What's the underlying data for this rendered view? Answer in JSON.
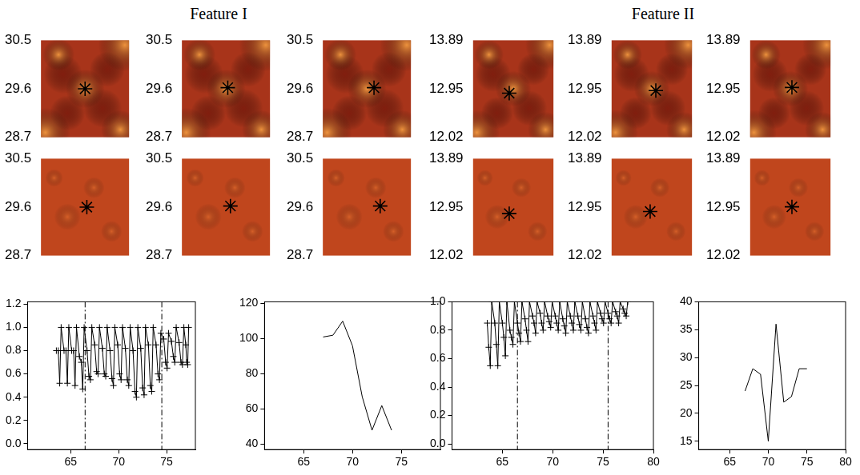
{
  "titles": [
    "Feature I",
    "Feature II"
  ],
  "image_panels": [
    {
      "type": "image",
      "color": "#a8341a",
      "ylim": [
        28.7,
        30.5
      ],
      "yticks": [
        28.7,
        29.6,
        30.5
      ],
      "tick_labels": "y",
      "xlim": [
        0,
        1
      ],
      "star": {
        "x": 0.5,
        "y": 29.6
      }
    },
    {
      "type": "image",
      "color": "#a8341a",
      "ylim": [
        28.7,
        30.5
      ],
      "yticks": [
        28.7,
        29.6,
        30.5
      ],
      "tick_labels": "y",
      "xlim": [
        0,
        1
      ],
      "star": {
        "x": 0.52,
        "y": 29.62
      }
    },
    {
      "type": "image",
      "color": "#a8341a",
      "ylim": [
        28.7,
        30.5
      ],
      "yticks": [
        28.7,
        29.6,
        30.5
      ],
      "tick_labels": "y",
      "xlim": [
        0,
        1
      ],
      "star": {
        "x": 0.58,
        "y": 29.62
      }
    },
    {
      "type": "image",
      "color": "#a8341a",
      "ylim": [
        12.02,
        13.89
      ],
      "yticks": [
        12.02,
        12.95,
        13.89
      ],
      "tick_labels": "y",
      "xlim": [
        0,
        1
      ],
      "star": {
        "x": 0.45,
        "y": 12.87
      }
    },
    {
      "type": "image",
      "color": "#a8341a",
      "ylim": [
        12.02,
        13.89
      ],
      "yticks": [
        12.02,
        12.95,
        13.89
      ],
      "tick_labels": "y",
      "xlim": [
        0,
        1
      ],
      "star": {
        "x": 0.55,
        "y": 12.92
      }
    },
    {
      "type": "image",
      "color": "#a8341a",
      "ylim": [
        12.02,
        13.89
      ],
      "yticks": [
        12.02,
        12.95,
        13.89
      ],
      "tick_labels": "y",
      "xlim": [
        0,
        1
      ],
      "star": {
        "x": 0.52,
        "y": 12.98
      }
    },
    {
      "type": "image",
      "color": "#c0461d",
      "ylim": [
        28.7,
        30.5
      ],
      "yticks": [
        28.7,
        29.6,
        30.5
      ],
      "tick_labels": "y",
      "xlim": [
        0,
        1
      ],
      "star": {
        "x": 0.52,
        "y": 29.6
      }
    },
    {
      "type": "image",
      "color": "#c0461d",
      "ylim": [
        28.7,
        30.5
      ],
      "yticks": [
        28.7,
        29.6,
        30.5
      ],
      "tick_labels": "y",
      "xlim": [
        0,
        1
      ],
      "star": {
        "x": 0.55,
        "y": 29.62
      }
    },
    {
      "type": "image",
      "color": "#c0461d",
      "ylim": [
        28.7,
        30.5
      ],
      "yticks": [
        28.7,
        29.6,
        30.5
      ],
      "tick_labels": "y",
      "xlim": [
        0,
        1
      ],
      "star": {
        "x": 0.65,
        "y": 29.62
      }
    },
    {
      "type": "image",
      "color": "#c0461d",
      "ylim": [
        12.02,
        13.89
      ],
      "yticks": [
        12.02,
        12.95,
        13.89
      ],
      "tick_labels": "y",
      "xlim": [
        0,
        1
      ],
      "star": {
        "x": 0.45,
        "y": 12.83
      }
    },
    {
      "type": "image",
      "color": "#c0461d",
      "ylim": [
        12.02,
        13.89
      ],
      "yticks": [
        12.02,
        12.95,
        13.89
      ],
      "tick_labels": "y",
      "xlim": [
        0,
        1
      ],
      "star": {
        "x": 0.48,
        "y": 12.87
      }
    },
    {
      "type": "image",
      "color": "#c0461d",
      "ylim": [
        12.02,
        13.89
      ],
      "yticks": [
        12.02,
        12.95,
        13.89
      ],
      "tick_labels": "y",
      "xlim": [
        0,
        1
      ],
      "star": {
        "x": 0.52,
        "y": 12.96
      }
    }
  ],
  "chart_data": [
    {
      "type": "line",
      "color": "#000000",
      "marker": "cross",
      "grid": false,
      "xlim": [
        60.5,
        78
      ],
      "xticks": [
        65,
        70,
        75
      ],
      "ylim": [
        -0.05,
        1.22
      ],
      "yticks": [
        {
          "value": 0,
          "label": "0.0"
        },
        0.2,
        0.4,
        0.6,
        0.8,
        {
          "value": 1,
          "label": "1.0"
        },
        1.2
      ],
      "vlines": [
        66.5,
        74.5
      ],
      "x": [
        63.5,
        63.7,
        63.85,
        64.0,
        64.3,
        64.5,
        64.65,
        64.8,
        65.1,
        65.3,
        65.45,
        65.6,
        65.9,
        66.1,
        66.25,
        66.4,
        66.7,
        66.9,
        67.05,
        67.2,
        67.5,
        67.7,
        67.85,
        68.0,
        68.3,
        68.5,
        68.65,
        68.8,
        69.1,
        69.3,
        69.45,
        69.6,
        69.9,
        70.1,
        70.25,
        70.4,
        70.7,
        70.9,
        71.05,
        71.2,
        71.5,
        71.7,
        71.85,
        72.0,
        72.3,
        72.5,
        72.65,
        72.8,
        73.1,
        73.3,
        73.45,
        73.6,
        73.9,
        74.1,
        74.25,
        74.4,
        74.7,
        74.9,
        75.05,
        75.2,
        75.5,
        75.7,
        75.85,
        76.0,
        76.3,
        76.5,
        76.65,
        76.8,
        77.0,
        77.1,
        77.2,
        77.3
      ],
      "values": [
        0.8,
        0.8,
        0.52,
        1.0,
        0.8,
        0.8,
        0.52,
        1.0,
        0.8,
        0.8,
        0.5,
        1.0,
        0.75,
        0.7,
        0.47,
        1.0,
        0.8,
        0.58,
        0.55,
        1.0,
        0.85,
        0.62,
        0.6,
        1.0,
        0.82,
        0.6,
        0.58,
        1.0,
        0.8,
        0.56,
        0.5,
        1.0,
        0.85,
        0.6,
        0.55,
        1.0,
        0.82,
        0.55,
        0.5,
        1.0,
        0.8,
        0.45,
        0.4,
        1.0,
        0.82,
        0.48,
        0.42,
        1.0,
        0.85,
        0.5,
        0.45,
        1.0,
        0.85,
        0.6,
        0.55,
        0.95,
        0.9,
        0.7,
        0.65,
        0.95,
        0.88,
        0.75,
        0.7,
        1.0,
        0.87,
        0.7,
        0.68,
        1.0,
        0.85,
        0.7,
        0.68,
        1.0
      ]
    },
    {
      "type": "line",
      "color": "#000000",
      "grid": false,
      "xlim": [
        61,
        79
      ],
      "xticks": [
        65,
        70,
        75
      ],
      "ylim": [
        37,
        121
      ],
      "yticks": [
        40,
        60,
        80,
        100,
        120
      ],
      "x": [
        67,
        68,
        69,
        70,
        71,
        72,
        73,
        74
      ],
      "values": [
        101,
        102,
        110,
        96,
        67,
        48,
        62,
        48
      ]
    },
    {
      "type": "line",
      "color": "#000000",
      "marker": "cross",
      "grid": false,
      "xlim": [
        60,
        80
      ],
      "xticks": [
        65,
        70,
        75,
        80
      ],
      "ylim": [
        -0.04,
        1.0
      ],
      "yticks": [
        {
          "value": 0,
          "label": "0.0"
        },
        0.2,
        0.4,
        0.6,
        0.8,
        {
          "value": 1,
          "label": "1.0"
        }
      ],
      "vlines": [
        66.5,
        75.5
      ],
      "x": [
        63.5,
        63.65,
        63.8,
        63.95,
        64.25,
        64.4,
        64.55,
        64.7,
        65.0,
        65.15,
        65.3,
        65.45,
        65.75,
        65.9,
        66.05,
        66.2,
        66.5,
        66.65,
        66.8,
        66.95,
        67.25,
        67.4,
        67.55,
        67.7,
        68.0,
        68.15,
        68.3,
        68.45,
        68.75,
        68.9,
        69.05,
        69.2,
        69.5,
        69.65,
        69.8,
        69.95,
        70.25,
        70.4,
        70.55,
        70.7,
        71.0,
        71.15,
        71.3,
        71.45,
        71.75,
        71.9,
        72.05,
        72.2,
        72.5,
        72.65,
        72.8,
        72.95,
        73.25,
        73.4,
        73.55,
        73.7,
        74.0,
        74.15,
        74.3,
        74.45,
        74.75,
        74.9,
        75.05,
        75.2,
        75.5,
        75.65,
        75.8,
        75.95,
        76.25,
        76.4,
        76.55,
        76.7,
        77.0,
        77.15,
        77.3,
        77.45
      ],
      "values": [
        0.85,
        0.68,
        0.55,
        1.0,
        0.85,
        0.7,
        0.55,
        1.0,
        0.85,
        0.75,
        0.62,
        1.0,
        0.8,
        0.75,
        0.7,
        1.0,
        0.85,
        0.78,
        0.72,
        1.0,
        0.88,
        0.8,
        0.72,
        1.0,
        0.9,
        0.85,
        0.78,
        1.0,
        0.92,
        0.85,
        0.8,
        1.0,
        0.9,
        0.86,
        0.82,
        1.0,
        0.9,
        0.85,
        0.8,
        1.0,
        0.88,
        0.83,
        0.78,
        1.0,
        0.9,
        0.85,
        0.8,
        1.0,
        0.9,
        0.84,
        0.8,
        1.0,
        0.88,
        0.82,
        0.78,
        1.0,
        0.9,
        0.85,
        0.8,
        1.0,
        0.92,
        0.88,
        0.85,
        1.0,
        0.92,
        0.88,
        0.85,
        1.0,
        0.93,
        0.9,
        0.85,
        1.0,
        0.95,
        0.92,
        0.9,
        1.0
      ]
    },
    {
      "type": "line",
      "color": "#000000",
      "grid": false,
      "xlim": [
        61,
        80
      ],
      "xticks": [
        65,
        70,
        75,
        80
      ],
      "ylim": [
        13.5,
        40
      ],
      "yticks": [
        15,
        20,
        25,
        30,
        35,
        40
      ],
      "x": [
        67,
        68,
        69,
        70,
        71,
        72,
        73,
        74,
        75
      ],
      "values": [
        24,
        28,
        27,
        15,
        36,
        22,
        23,
        28,
        28
      ]
    }
  ]
}
